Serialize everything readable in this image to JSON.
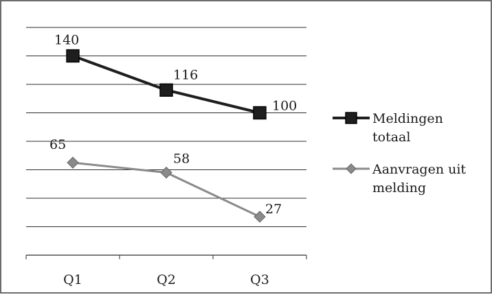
{
  "chart_data": {
    "type": "line",
    "categories": [
      "Q1",
      "Q2",
      "Q3"
    ],
    "series": [
      {
        "name": "Meldingen totaal",
        "values": [
          140,
          116,
          100
        ],
        "color": "#1e1e1e",
        "marker": "square"
      },
      {
        "name": "Aanvragen uit melding",
        "values": [
          65,
          58,
          27
        ],
        "color": "#8a8a8a",
        "marker": "diamond"
      }
    ],
    "ylim": [
      0,
      160
    ],
    "grid": true,
    "legend_position": "right",
    "legend_lines": [
      [
        "Meldingen",
        "totaal"
      ],
      [
        "Aanvragen uit",
        "melding"
      ]
    ]
  }
}
